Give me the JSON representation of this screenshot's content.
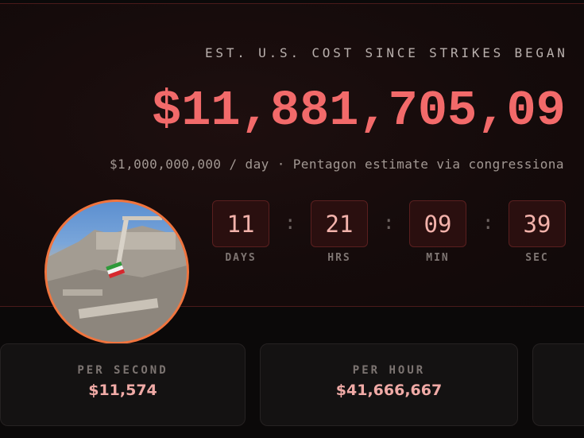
{
  "hero": {
    "label": "EST. U.S. COST SINCE STRIKES BEGAN",
    "total": "$11,881,705,09",
    "subtitle": "$1,000,000,000 / day · Pentagon estimate via congressiona",
    "photo_icon": "rubble-with-flag-photo",
    "countdown": [
      {
        "value": "11",
        "unit": "DAYS"
      },
      {
        "value": "21",
        "unit": "HRS"
      },
      {
        "value": "09",
        "unit": "MIN"
      },
      {
        "value": "39",
        "unit": "SEC"
      }
    ],
    "separator": ":"
  },
  "stats": [
    {
      "label": "PER SECOND",
      "value": "$11,574"
    },
    {
      "label": "PER HOUR",
      "value": "$41,666,667"
    }
  ],
  "colors": {
    "accent": "#f26a6a",
    "photo_border": "#f0743e"
  }
}
